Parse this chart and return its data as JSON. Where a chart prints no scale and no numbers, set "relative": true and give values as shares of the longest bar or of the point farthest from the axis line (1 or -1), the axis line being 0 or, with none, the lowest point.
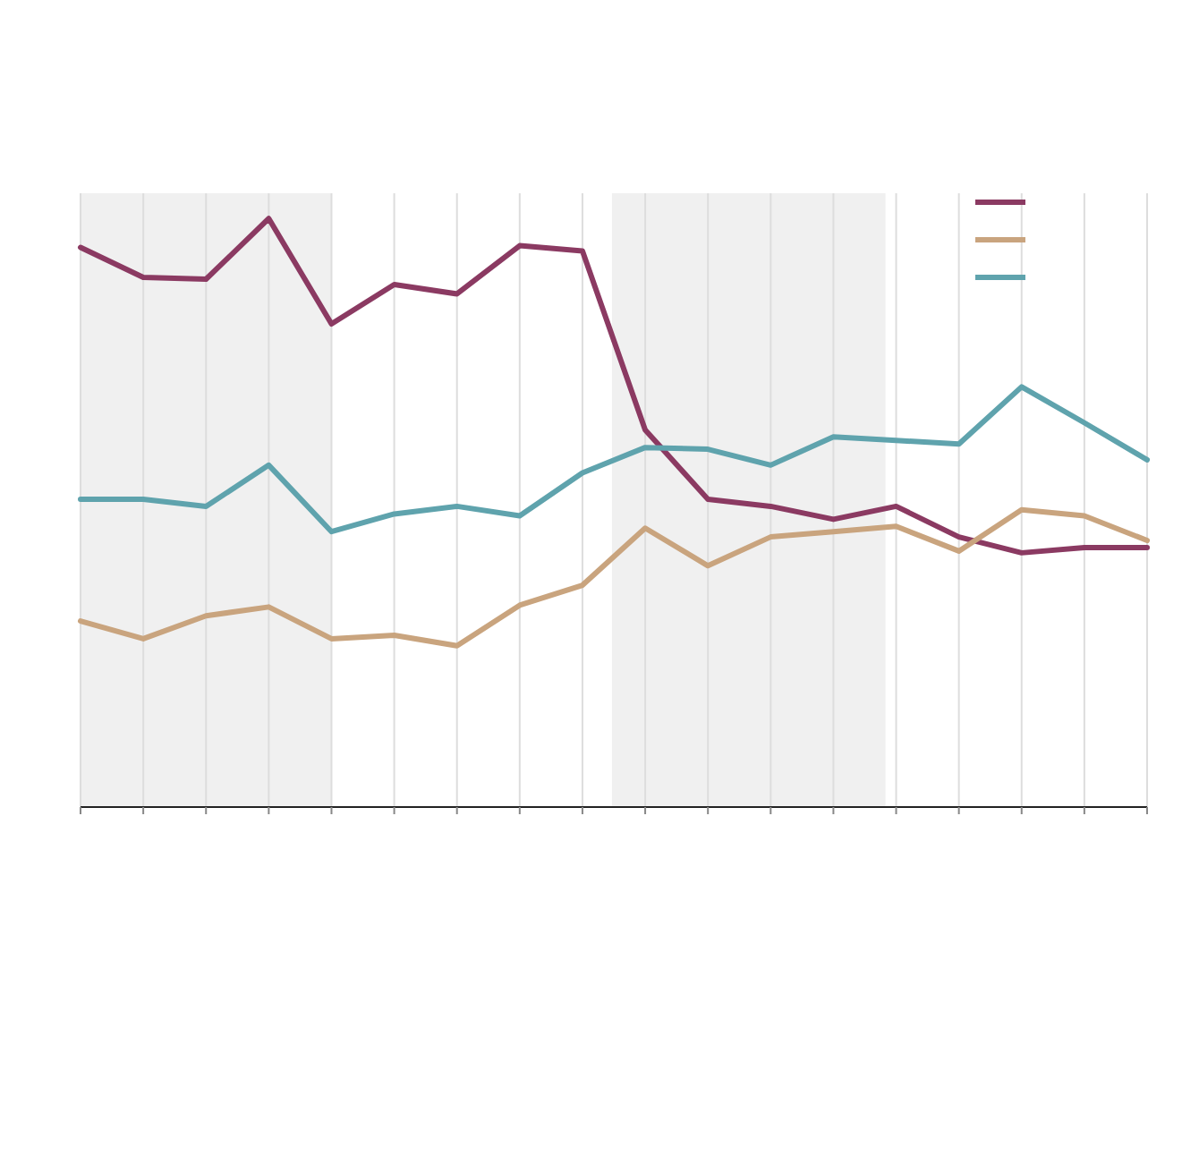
{
  "chart_data": {
    "type": "line",
    "relative": true,
    "categories": [
      null,
      null,
      null,
      null,
      null,
      null,
      null,
      null,
      null,
      null,
      null,
      null,
      null,
      null,
      null,
      null,
      null,
      null
    ],
    "series": [
      {
        "color": "#8b3a62",
        "values": [
          0.951,
          0.9,
          0.897,
          1,
          0.821,
          0.888,
          0.872,
          0.954,
          0.945,
          0.641,
          0.523,
          0.511,
          0.489,
          0.511,
          0.459,
          0.432,
          0.441,
          0.441
        ]
      },
      {
        "color": "#c9a47e",
        "values": [
          0.316,
          0.286,
          0.325,
          0.34,
          0.286,
          0.292,
          0.274,
          0.343,
          0.377,
          0.474,
          0.41,
          0.459,
          0.468,
          0.477,
          0.435,
          0.505,
          0.495,
          0.453
        ]
      },
      {
        "color": "#5fa3ad",
        "values": [
          0.523,
          0.523,
          0.511,
          0.581,
          0.468,
          0.498,
          0.511,
          0.495,
          0.568,
          0.611,
          0.608,
          0.581,
          0.629,
          0.623,
          0.617,
          0.714,
          0.653,
          0.59
        ]
      }
    ],
    "grid": "x",
    "marker": "none",
    "line_style": "solid"
  }
}
